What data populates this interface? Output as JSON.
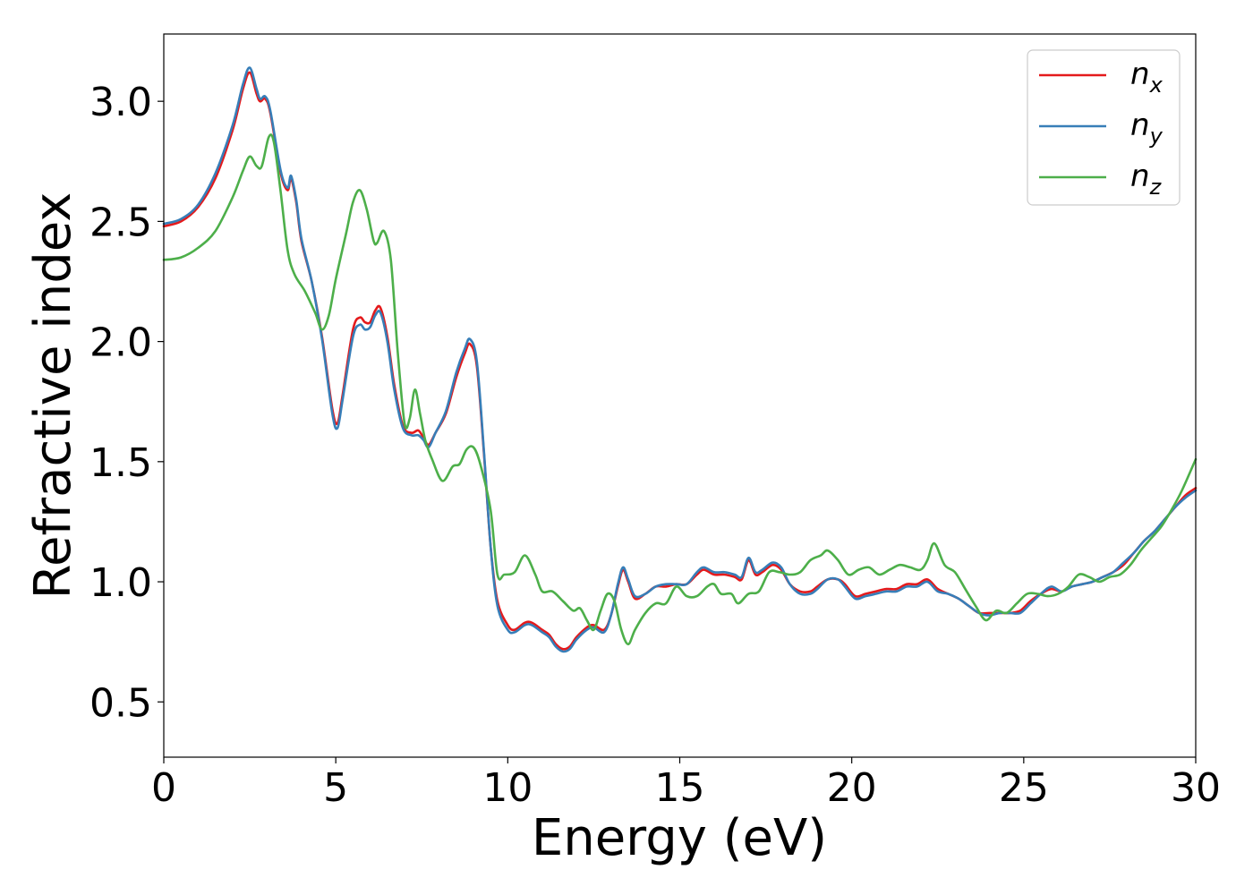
{
  "chart_data": {
    "type": "line",
    "title": "",
    "xlabel": "Energy (eV)",
    "ylabel": "Refractive index",
    "xlim": [
      0,
      30
    ],
    "ylim": [
      0.27,
      3.28
    ],
    "xticks": [
      0,
      5,
      10,
      15,
      20,
      25,
      30
    ],
    "xtick_labels": [
      "0",
      "5",
      "10",
      "15",
      "20",
      "25",
      "30"
    ],
    "yticks": [
      0.5,
      1.0,
      1.5,
      2.0,
      2.5,
      3.0
    ],
    "ytick_labels": [
      "0.5",
      "1.0",
      "1.5",
      "2.0",
      "2.5",
      "3.0"
    ],
    "grid": false,
    "legend_position": "top-right",
    "series": [
      {
        "name": "n_x",
        "legend_base": "n",
        "legend_sub": "x",
        "color": "#e41a1c",
        "x": [
          0,
          0.5,
          1.0,
          1.5,
          2.0,
          2.3,
          2.5,
          2.7,
          2.8,
          2.95,
          3.1,
          3.4,
          3.6,
          3.7,
          3.85,
          4.0,
          4.3,
          4.6,
          4.9,
          5.05,
          5.2,
          5.5,
          5.7,
          5.85,
          6.0,
          6.15,
          6.3,
          6.5,
          6.7,
          6.95,
          7.2,
          7.4,
          7.55,
          7.7,
          7.9,
          8.2,
          8.5,
          8.75,
          8.9,
          9.1,
          9.3,
          9.5,
          9.7,
          10.0,
          10.2,
          10.5,
          10.7,
          11.0,
          11.2,
          11.4,
          11.6,
          11.8,
          12.0,
          12.3,
          12.5,
          12.8,
          13.0,
          13.2,
          13.35,
          13.5,
          13.7,
          14.0,
          14.3,
          14.6,
          14.9,
          15.2,
          15.5,
          15.7,
          16.0,
          16.3,
          16.6,
          16.8,
          17.0,
          17.2,
          17.4,
          17.7,
          17.95,
          18.2,
          18.5,
          18.8,
          19.0,
          19.3,
          19.6,
          19.8,
          20.1,
          20.4,
          20.7,
          21.0,
          21.3,
          21.6,
          21.9,
          22.2,
          22.5,
          22.8,
          23.1,
          23.4,
          23.7,
          24.0,
          24.3,
          24.6,
          24.9,
          25.2,
          25.5,
          25.8,
          26.1,
          26.4,
          26.7,
          27.0,
          27.3,
          27.6,
          27.9,
          28.2,
          28.5,
          28.8,
          29.1,
          29.4,
          29.7,
          30.0
        ],
        "y": [
          2.48,
          2.5,
          2.56,
          2.68,
          2.88,
          3.05,
          3.12,
          3.03,
          3.0,
          3.01,
          2.95,
          2.7,
          2.63,
          2.68,
          2.58,
          2.42,
          2.25,
          2.02,
          1.72,
          1.66,
          1.78,
          2.05,
          2.1,
          2.08,
          2.08,
          2.13,
          2.14,
          2.02,
          1.82,
          1.65,
          1.62,
          1.63,
          1.6,
          1.57,
          1.62,
          1.7,
          1.85,
          1.95,
          1.99,
          1.9,
          1.55,
          1.15,
          0.92,
          0.82,
          0.8,
          0.83,
          0.83,
          0.8,
          0.78,
          0.74,
          0.72,
          0.73,
          0.77,
          0.81,
          0.82,
          0.8,
          0.86,
          0.98,
          1.05,
          1.0,
          0.93,
          0.95,
          0.98,
          0.98,
          0.99,
          0.99,
          1.03,
          1.05,
          1.03,
          1.03,
          1.02,
          1.01,
          1.09,
          1.03,
          1.04,
          1.07,
          1.05,
          0.99,
          0.96,
          0.96,
          0.98,
          1.01,
          1.01,
          0.99,
          0.94,
          0.95,
          0.96,
          0.97,
          0.97,
          0.99,
          0.99,
          1.01,
          0.97,
          0.95,
          0.93,
          0.9,
          0.87,
          0.87,
          0.87,
          0.87,
          0.88,
          0.92,
          0.95,
          0.97,
          0.96,
          0.98,
          0.99,
          1.0,
          1.02,
          1.04,
          1.07,
          1.12,
          1.17,
          1.21,
          1.26,
          1.31,
          1.36,
          1.39
        ]
      },
      {
        "name": "n_y",
        "legend_base": "n",
        "legend_sub": "y",
        "color": "#377eb8",
        "x": [
          0,
          0.5,
          1.0,
          1.5,
          2.0,
          2.3,
          2.5,
          2.7,
          2.8,
          2.95,
          3.1,
          3.4,
          3.6,
          3.7,
          3.85,
          4.0,
          4.3,
          4.6,
          4.9,
          5.05,
          5.2,
          5.5,
          5.7,
          5.85,
          6.0,
          6.15,
          6.3,
          6.5,
          6.7,
          6.95,
          7.2,
          7.4,
          7.55,
          7.7,
          7.9,
          8.2,
          8.5,
          8.75,
          8.9,
          9.1,
          9.3,
          9.5,
          9.7,
          10.0,
          10.2,
          10.5,
          10.7,
          11.0,
          11.2,
          11.4,
          11.6,
          11.8,
          12.0,
          12.3,
          12.5,
          12.8,
          13.0,
          13.2,
          13.35,
          13.5,
          13.7,
          14.0,
          14.3,
          14.6,
          14.9,
          15.2,
          15.5,
          15.7,
          16.0,
          16.3,
          16.6,
          16.8,
          17.0,
          17.2,
          17.4,
          17.7,
          17.95,
          18.2,
          18.5,
          18.8,
          19.0,
          19.3,
          19.6,
          19.8,
          20.1,
          20.4,
          20.7,
          21.0,
          21.3,
          21.6,
          21.9,
          22.2,
          22.5,
          22.8,
          23.1,
          23.4,
          23.7,
          24.0,
          24.3,
          24.6,
          24.9,
          25.2,
          25.5,
          25.8,
          26.1,
          26.4,
          26.7,
          27.0,
          27.3,
          27.6,
          27.9,
          28.2,
          28.5,
          28.8,
          29.1,
          29.4,
          29.7,
          30.0
        ],
        "y": [
          2.49,
          2.51,
          2.57,
          2.7,
          2.9,
          3.07,
          3.14,
          3.05,
          3.01,
          3.02,
          2.96,
          2.71,
          2.64,
          2.69,
          2.59,
          2.43,
          2.25,
          2.01,
          1.7,
          1.64,
          1.76,
          2.02,
          2.07,
          2.05,
          2.06,
          2.11,
          2.12,
          2.0,
          1.8,
          1.64,
          1.61,
          1.61,
          1.59,
          1.56,
          1.62,
          1.71,
          1.87,
          1.97,
          2.01,
          1.92,
          1.56,
          1.15,
          0.9,
          0.8,
          0.79,
          0.82,
          0.82,
          0.79,
          0.77,
          0.73,
          0.71,
          0.72,
          0.76,
          0.8,
          0.81,
          0.79,
          0.86,
          0.99,
          1.06,
          1.01,
          0.94,
          0.95,
          0.98,
          0.99,
          0.99,
          0.99,
          1.04,
          1.06,
          1.04,
          1.04,
          1.03,
          1.02,
          1.1,
          1.04,
          1.05,
          1.08,
          1.06,
          0.99,
          0.95,
          0.95,
          0.97,
          1.01,
          1.01,
          0.98,
          0.93,
          0.94,
          0.95,
          0.96,
          0.96,
          0.98,
          0.98,
          1.0,
          0.96,
          0.95,
          0.93,
          0.9,
          0.87,
          0.86,
          0.87,
          0.87,
          0.87,
          0.91,
          0.95,
          0.98,
          0.96,
          0.98,
          0.99,
          1.0,
          1.02,
          1.04,
          1.08,
          1.12,
          1.17,
          1.21,
          1.26,
          1.31,
          1.35,
          1.38
        ]
      },
      {
        "name": "n_z",
        "legend_base": "n",
        "legend_sub": "z",
        "color": "#4daf4a",
        "x": [
          0,
          0.5,
          1.0,
          1.5,
          2.0,
          2.3,
          2.5,
          2.7,
          2.85,
          3.05,
          3.2,
          3.4,
          3.6,
          3.8,
          4.1,
          4.4,
          4.6,
          4.8,
          5.0,
          5.3,
          5.5,
          5.7,
          5.9,
          6.1,
          6.2,
          6.4,
          6.6,
          6.8,
          7.0,
          7.15,
          7.3,
          7.45,
          7.6,
          7.8,
          8.1,
          8.4,
          8.6,
          8.8,
          9.0,
          9.2,
          9.5,
          9.7,
          9.9,
          10.2,
          10.5,
          10.8,
          11.0,
          11.3,
          11.6,
          11.9,
          12.1,
          12.3,
          12.5,
          12.7,
          12.9,
          13.1,
          13.3,
          13.5,
          13.7,
          14.0,
          14.3,
          14.6,
          14.9,
          15.2,
          15.5,
          15.8,
          16.0,
          16.2,
          16.5,
          16.7,
          17.0,
          17.3,
          17.6,
          17.9,
          18.2,
          18.5,
          18.8,
          19.1,
          19.3,
          19.6,
          19.9,
          20.2,
          20.5,
          20.8,
          21.1,
          21.4,
          21.7,
          22.0,
          22.2,
          22.4,
          22.7,
          23.0,
          23.3,
          23.6,
          23.9,
          24.2,
          24.5,
          24.8,
          25.1,
          25.4,
          25.7,
          26.0,
          26.3,
          26.6,
          26.9,
          27.2,
          27.5,
          27.8,
          28.1,
          28.4,
          28.7,
          29.0,
          29.3,
          29.6,
          30.0
        ],
        "y": [
          2.34,
          2.35,
          2.39,
          2.46,
          2.6,
          2.71,
          2.77,
          2.73,
          2.73,
          2.85,
          2.83,
          2.62,
          2.38,
          2.28,
          2.21,
          2.12,
          2.05,
          2.11,
          2.26,
          2.45,
          2.58,
          2.63,
          2.55,
          2.42,
          2.41,
          2.46,
          2.34,
          1.96,
          1.66,
          1.68,
          1.8,
          1.7,
          1.59,
          1.51,
          1.42,
          1.48,
          1.49,
          1.55,
          1.56,
          1.49,
          1.3,
          1.03,
          1.03,
          1.04,
          1.11,
          1.03,
          0.96,
          0.96,
          0.92,
          0.88,
          0.89,
          0.84,
          0.8,
          0.88,
          0.95,
          0.92,
          0.8,
          0.74,
          0.8,
          0.87,
          0.91,
          0.91,
          0.98,
          0.94,
          0.94,
          0.98,
          0.99,
          0.95,
          0.95,
          0.91,
          0.95,
          0.96,
          1.04,
          1.04,
          1.03,
          1.04,
          1.09,
          1.11,
          1.13,
          1.09,
          1.03,
          1.05,
          1.06,
          1.03,
          1.05,
          1.07,
          1.06,
          1.05,
          1.09,
          1.16,
          1.07,
          1.04,
          0.97,
          0.9,
          0.84,
          0.88,
          0.87,
          0.91,
          0.95,
          0.95,
          0.94,
          0.95,
          0.98,
          1.03,
          1.02,
          1.0,
          1.02,
          1.03,
          1.07,
          1.13,
          1.18,
          1.23,
          1.3,
          1.38,
          1.51
        ]
      }
    ]
  }
}
